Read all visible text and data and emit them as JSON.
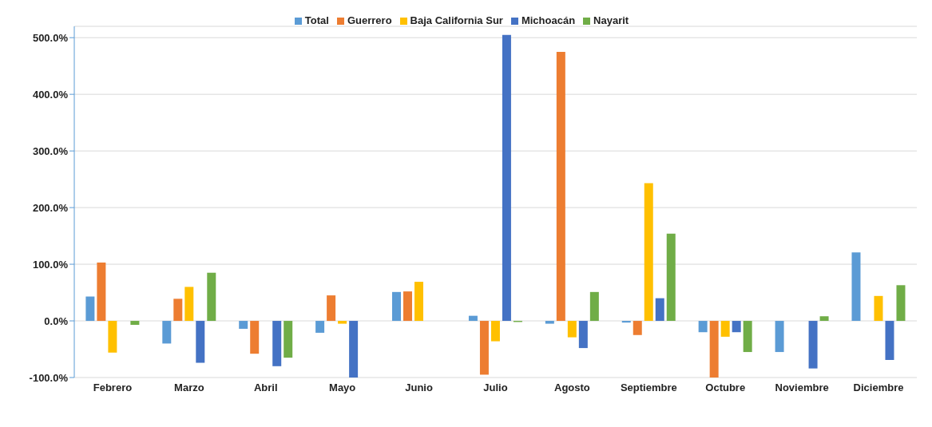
{
  "chart_data": {
    "type": "bar",
    "categories": [
      "Febrero",
      "Marzo",
      "Abril",
      "Mayo",
      "Junio",
      "Julio",
      "Agosto",
      "Septiembre",
      "Octubre",
      "Noviembre",
      "Diciembre"
    ],
    "series": [
      {
        "name": "Total",
        "color": "#5b9bd5",
        "values": [
          43,
          -40,
          -14,
          -21,
          51,
          9,
          -5,
          -3,
          -20,
          -55,
          121
        ]
      },
      {
        "name": "Guerrero",
        "color": "#ed7d31",
        "values": [
          103,
          39,
          -58,
          45,
          52,
          -95,
          475,
          -25,
          -100,
          null,
          null
        ]
      },
      {
        "name": "Baja California Sur",
        "color": "#ffc000",
        "values": [
          -56,
          60,
          null,
          -5,
          69,
          -36,
          -29,
          243,
          -28,
          null,
          44
        ]
      },
      {
        "name": "Michoacán",
        "color": "#4472c4",
        "values": [
          null,
          -74,
          -80,
          -100,
          null,
          505,
          -48,
          40,
          -20,
          -84,
          -69
        ]
      },
      {
        "name": "Nayarit",
        "color": "#70ad47",
        "values": [
          -7,
          85,
          -65,
          null,
          null,
          -2,
          51,
          154,
          -55,
          8,
          63
        ]
      }
    ],
    "ylim": [
      -100,
      520
    ],
    "yticks": [
      {
        "value": -100,
        "label": "-100.0%"
      },
      {
        "value": 0,
        "label": "0.0%"
      },
      {
        "value": 100,
        "label": "100.0%"
      },
      {
        "value": 200,
        "label": "200.0%"
      },
      {
        "value": 300,
        "label": "300.0%"
      },
      {
        "value": 400,
        "label": "400.0%"
      },
      {
        "value": 500,
        "label": "500.0%"
      }
    ],
    "grid": "y",
    "legend": "top"
  }
}
